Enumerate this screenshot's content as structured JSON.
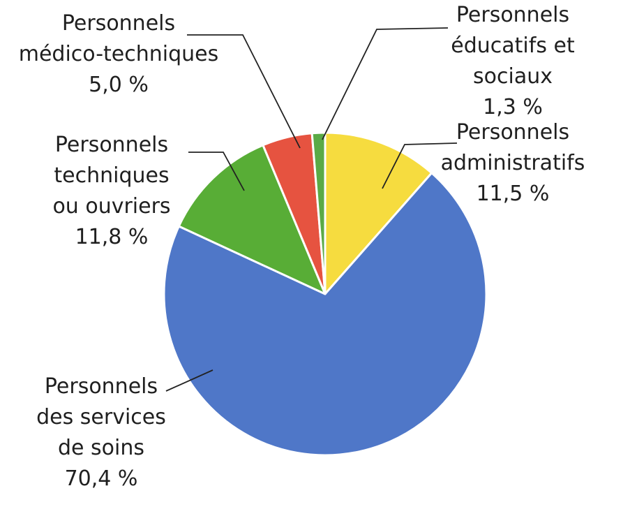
{
  "chart_data": {
    "type": "pie",
    "start_angle_deg": 0,
    "direction": "clockwise",
    "slices": [
      {
        "label": "Personnels\nadministratifs",
        "value": 11.5,
        "value_label": "11,5 %",
        "color": "#f6dc3f"
      },
      {
        "label": "Personnels\ndes services\nde soins",
        "value": 70.4,
        "value_label": "70,4 %",
        "color": "#4f77c8"
      },
      {
        "label": "Personnels\ntechniques\nou ouvriers",
        "value": 11.8,
        "value_label": "11,8 %",
        "color": "#58ad36"
      },
      {
        "label": "Personnels\nmédico-techniques",
        "value": 5.0,
        "value_label": "5,0 %",
        "color": "#e65340"
      },
      {
        "label": "Personnels\néducatifs et sociaux",
        "value": 1.3,
        "value_label": "1,3 %",
        "color": "#5aaa46"
      }
    ]
  }
}
